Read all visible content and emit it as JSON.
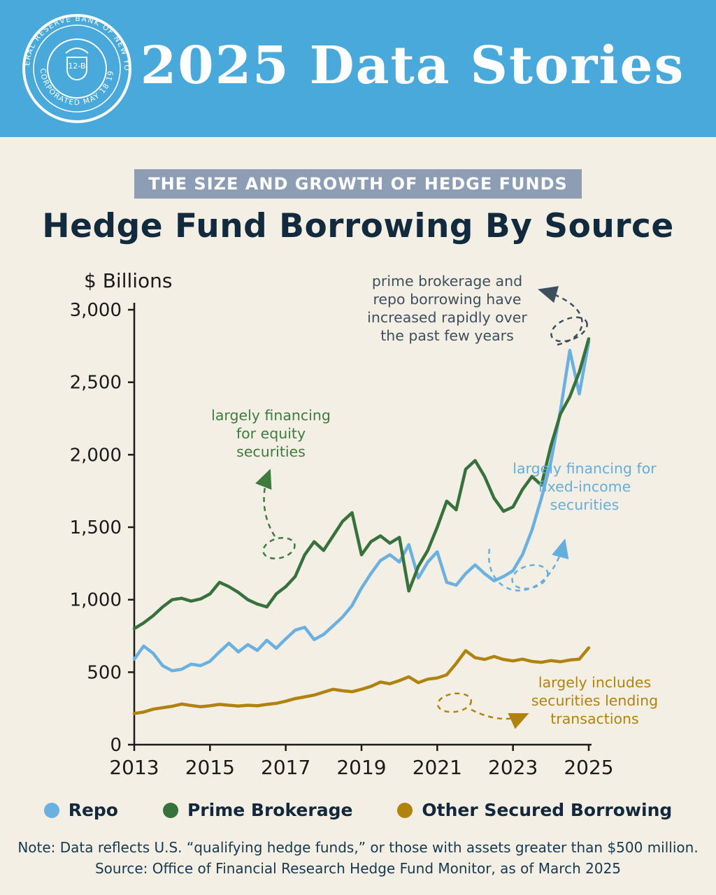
{
  "header": {
    "title": "2025 Data Stories",
    "seal_top": "FEDERAL RESERVE BANK OF NEW YORK",
    "seal_bottom": "INCORPORATED MAY 18 1914",
    "seal_center": "12-B"
  },
  "badge": {
    "label": "THE SIZE AND GROWTH OF HEDGE FUNDS"
  },
  "page_title": "Hedge Fund Borrowing By Source",
  "chart_data": {
    "type": "line",
    "title": "Hedge Fund Borrowing By Source",
    "xlabel": "",
    "ylabel": "$ Billions",
    "xlim": [
      2013,
      2025
    ],
    "ylim": [
      0,
      3000
    ],
    "grid": false,
    "legend_position": "bottom",
    "yticks": [
      0,
      500,
      1000,
      1500,
      2000,
      2500,
      3000
    ],
    "ytick_labels": [
      "0",
      "500",
      "1,000",
      "1,500",
      "2,000",
      "2,500",
      "3,000"
    ],
    "xticks": [
      2013,
      2015,
      2017,
      2019,
      2021,
      2023,
      2025
    ],
    "x": [
      2013,
      2013.25,
      2013.5,
      2013.75,
      2014,
      2014.25,
      2014.5,
      2014.75,
      2015,
      2015.25,
      2015.5,
      2015.75,
      2016,
      2016.25,
      2016.5,
      2016.75,
      2017,
      2017.25,
      2017.5,
      2017.75,
      2018,
      2018.25,
      2018.5,
      2018.75,
      2019,
      2019.25,
      2019.5,
      2019.75,
      2020,
      2020.25,
      2020.5,
      2020.75,
      2021,
      2021.25,
      2021.5,
      2021.75,
      2022,
      2022.25,
      2022.5,
      2022.75,
      2023,
      2023.25,
      2023.5,
      2023.75,
      2024,
      2024.25,
      2024.5,
      2024.75,
      2025
    ],
    "series": [
      {
        "name": "Repo",
        "color": "#6ab0e0",
        "values": [
          590,
          680,
          630,
          545,
          510,
          520,
          555,
          545,
          575,
          640,
          700,
          640,
          690,
          650,
          720,
          665,
          730,
          790,
          810,
          725,
          760,
          820,
          880,
          960,
          1080,
          1180,
          1270,
          1310,
          1260,
          1380,
          1150,
          1260,
          1330,
          1120,
          1100,
          1180,
          1240,
          1180,
          1130,
          1160,
          1200,
          1310,
          1480,
          1700,
          1950,
          2300,
          2720,
          2420,
          2780
        ]
      },
      {
        "name": "Prime Brokerage",
        "color": "#37713b",
        "values": [
          800,
          840,
          890,
          950,
          1000,
          1010,
          990,
          1005,
          1040,
          1120,
          1090,
          1050,
          1000,
          970,
          950,
          1040,
          1090,
          1160,
          1310,
          1400,
          1340,
          1440,
          1540,
          1600,
          1310,
          1400,
          1440,
          1390,
          1430,
          1060,
          1230,
          1340,
          1500,
          1680,
          1620,
          1900,
          1960,
          1850,
          1700,
          1610,
          1640,
          1760,
          1850,
          1790,
          2060,
          2280,
          2400,
          2570,
          2800
        ]
      },
      {
        "name": "Other Secured Borrowing",
        "color": "#b0830f",
        "values": [
          215,
          225,
          245,
          255,
          265,
          280,
          270,
          262,
          268,
          278,
          272,
          266,
          272,
          268,
          278,
          285,
          300,
          318,
          330,
          342,
          362,
          382,
          372,
          365,
          382,
          402,
          432,
          420,
          442,
          468,
          428,
          452,
          460,
          482,
          560,
          648,
          600,
          588,
          608,
          588,
          578,
          590,
          574,
          568,
          580,
          572,
          584,
          590,
          668
        ]
      }
    ]
  },
  "annotations": [
    {
      "text": "prime brokerage and repo borrowing have increased rapidly over the past few years",
      "color": "#3d4f5d"
    },
    {
      "text": "largely financing for equity securities",
      "color": "#3e7b3f"
    },
    {
      "text": "largely financing for fixed-income securities",
      "color": "#64aede"
    },
    {
      "text": "largely includes securities lending transactions",
      "color": "#b0830f"
    }
  ],
  "notes": {
    "line1": "Note: Data reflects U.S. “qualifying hedge funds,” or those with assets greater than $500 million.",
    "line2": "Source: Office of Financial Research Hedge Fund Monitor, as of March 2025"
  }
}
